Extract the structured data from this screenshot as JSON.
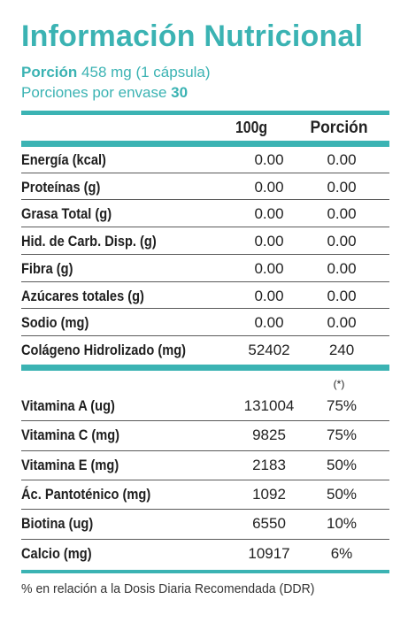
{
  "header": {
    "title": "Información Nutricional",
    "serving_label": "Porción",
    "serving_value": "458 mg (1 cápsula)",
    "servings_label": "Porciones por envase",
    "servings_value": "30"
  },
  "table": {
    "col_100g": "100g",
    "col_portion": "Porción",
    "nutrients": [
      {
        "name": "Energía (kcal)",
        "per100g": "0.00",
        "portion": "0.00"
      },
      {
        "name": "Proteínas (g)",
        "per100g": "0.00",
        "portion": "0.00"
      },
      {
        "name": "Grasa Total (g)",
        "per100g": "0.00",
        "portion": "0.00"
      },
      {
        "name": "Hid. de Carb. Disp. (g)",
        "per100g": "0.00",
        "portion": "0.00"
      },
      {
        "name": "Fibra (g)",
        "per100g": "0.00",
        "portion": "0.00"
      },
      {
        "name": "Azúcares totales (g)",
        "per100g": "0.00",
        "portion": "0.00"
      },
      {
        "name": "Sodio (mg)",
        "per100g": "0.00",
        "portion": "0.00"
      },
      {
        "name": "Colágeno Hidrolizado (mg)",
        "per100g": "52402",
        "portion": "240"
      }
    ],
    "asterisk": "(*)",
    "vitamins": [
      {
        "name": "Vitamina A (ug)",
        "per100g": "131004",
        "portion": "75%"
      },
      {
        "name": "Vitamina C (mg)",
        "per100g": "9825",
        "portion": "75%"
      },
      {
        "name": "Vitamina E (mg)",
        "per100g": "2183",
        "portion": "50%"
      },
      {
        "name": "Ác. Pantoténico (mg)",
        "per100g": "1092",
        "portion": "50%"
      },
      {
        "name": "Biotina (ug)",
        "per100g": "6550",
        "portion": "10%"
      },
      {
        "name": "Calcio (mg)",
        "per100g": "10917",
        "portion": "6%"
      }
    ]
  },
  "footnote": "% en relación a la Dosis Diaria Recomendada (DDR)",
  "colors": {
    "accent": "#3bb3b3",
    "text": "#1e1e1e"
  }
}
